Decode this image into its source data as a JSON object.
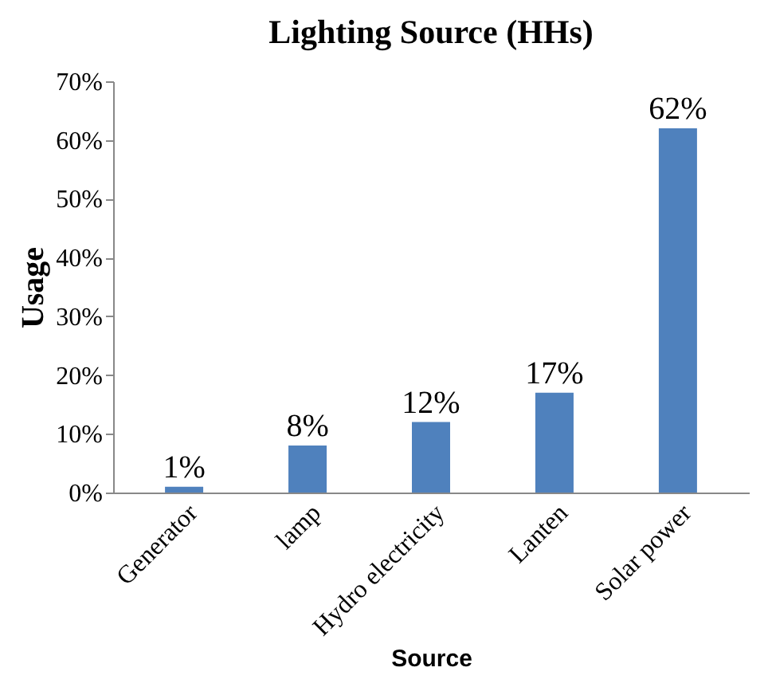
{
  "chart_data": {
    "type": "bar",
    "title": "Lighting Source (HHs)",
    "xlabel": "Source",
    "ylabel": "Usage",
    "categories": [
      "Generator",
      "lamp",
      "Hydro electricity",
      "Lanten",
      "Solar power"
    ],
    "values": [
      1,
      8,
      12,
      17,
      62
    ],
    "value_labels": [
      "1%",
      "8%",
      "12%",
      "17%",
      "62%"
    ],
    "color": "#4f81bd",
    "ylim": [
      0,
      70
    ],
    "yticks": [
      {
        "value": 0,
        "label": "0%"
      },
      {
        "value": 10,
        "label": "10%"
      },
      {
        "value": 20,
        "label": "20%"
      },
      {
        "value": 30,
        "label": "30%"
      },
      {
        "value": 40,
        "label": "40%"
      },
      {
        "value": 50,
        "label": "50%"
      },
      {
        "value": 60,
        "label": "60%"
      },
      {
        "value": 70,
        "label": "70%"
      }
    ],
    "grid": false
  }
}
